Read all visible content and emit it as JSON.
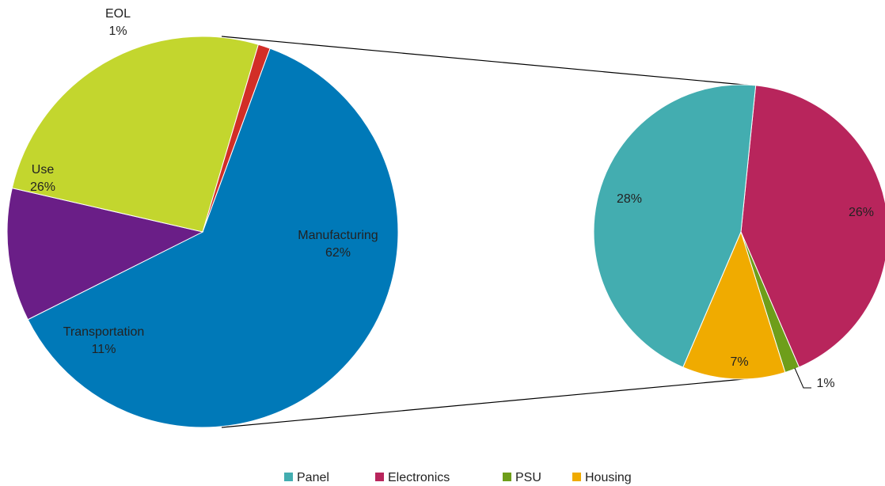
{
  "chart_data": {
    "type": "bar-of-pie",
    "main_pie": {
      "slices": [
        {
          "name": "Manufacturing",
          "label": "Manufacturing",
          "value": 62,
          "value_label": "62%",
          "color": "#0079B8"
        },
        {
          "name": "Transportation",
          "label": "Transportation",
          "value": 11,
          "value_label": "11%",
          "color": "#6A1E87"
        },
        {
          "name": "Use",
          "label": "Use",
          "value": 26,
          "value_label": "26%",
          "color": "#C3D62E"
        },
        {
          "name": "EOL",
          "label": "EOL",
          "value": 1,
          "value_label": "1%",
          "color": "#D22E27"
        }
      ]
    },
    "detail_pie": {
      "slices": [
        {
          "name": "Electronics",
          "value": 26,
          "value_label": "26%",
          "color": "#B8255C"
        },
        {
          "name": "PSU",
          "value": 1,
          "value_label": "1%",
          "color": "#6E9E1A"
        },
        {
          "name": "Housing",
          "value": 7,
          "value_label": "7%",
          "color": "#F0AB00"
        },
        {
          "name": "Panel",
          "value": 28,
          "value_label": "28%",
          "color": "#43ADB0"
        }
      ]
    },
    "legend": {
      "position": "bottom",
      "items": [
        {
          "name": "Panel",
          "color": "#43ADB0"
        },
        {
          "name": "Electronics",
          "color": "#B8255C"
        },
        {
          "name": "PSU",
          "color": "#6E9E1A"
        },
        {
          "name": "Housing",
          "color": "#F0AB00"
        }
      ]
    }
  }
}
